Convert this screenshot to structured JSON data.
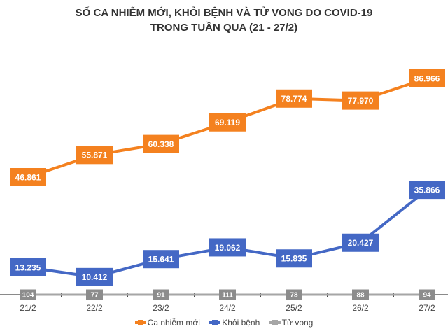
{
  "chart_data": {
    "type": "line",
    "title": "SỐ CA NHIỄM MỚI, KHỎI BỆNH VÀ TỬ VONG DO COVID-19",
    "subtitle": "TRONG TUẦN QUA (21 - 27/2)",
    "categories": [
      "21/2",
      "22/2",
      "23/2",
      "24/2",
      "25/2",
      "26/2",
      "27/2"
    ],
    "series": [
      {
        "name": "Ca nhiễm mới",
        "color": "#f4811f",
        "values": [
          46861,
          55871,
          60338,
          69119,
          78774,
          77970,
          86966
        ],
        "labels": [
          "46.861",
          "55.871",
          "60.338",
          "69.119",
          "78.774",
          "77.970",
          "86.966"
        ]
      },
      {
        "name": "Khỏi bệnh",
        "color": "#4468c5",
        "values": [
          13235,
          10412,
          15641,
          19062,
          15835,
          20427,
          35866
        ],
        "labels": [
          "13.235",
          "10.412",
          "15.641",
          "19.062",
          "15.835",
          "20.427",
          "35.866"
        ]
      },
      {
        "name": "Tử vong",
        "color": "#a6a6a6",
        "values": [
          104,
          77,
          91,
          111,
          78,
          88,
          94
        ],
        "labels": [
          "104",
          "77",
          "91",
          "111",
          "78",
          "88",
          "94"
        ]
      }
    ],
    "legend": "bottom",
    "grid": false
  }
}
